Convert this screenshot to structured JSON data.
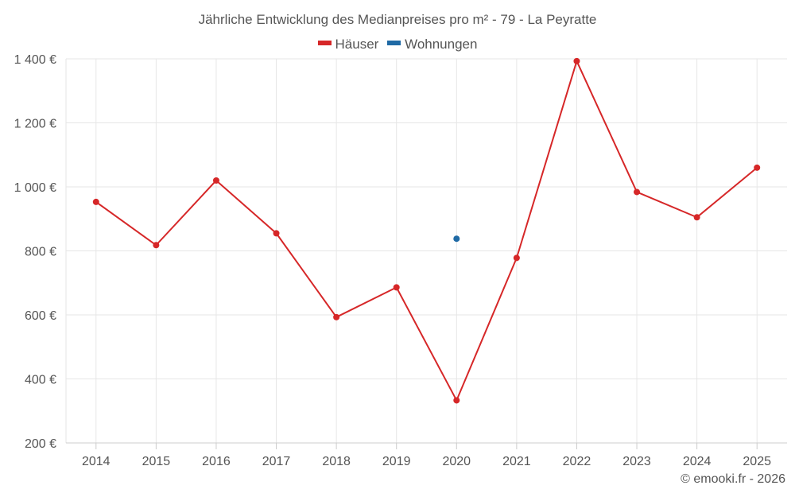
{
  "chart_data": {
    "type": "line",
    "title": "Jährliche Entwicklung des Medianpreises pro m² - 79 - La Peyratte",
    "xlabel": "",
    "ylabel": "",
    "categories": [
      "2014",
      "2015",
      "2016",
      "2017",
      "2018",
      "2019",
      "2020",
      "2021",
      "2022",
      "2023",
      "2024",
      "2025"
    ],
    "series": [
      {
        "name": "Häuser",
        "color": "#d62728",
        "values": [
          953,
          818,
          1020,
          855,
          593,
          686,
          333,
          778,
          1393,
          984,
          905,
          1060
        ]
      },
      {
        "name": "Wohnungen",
        "color": "#1f6aa5",
        "values": [
          null,
          null,
          null,
          null,
          null,
          null,
          838,
          null,
          null,
          null,
          null,
          null
        ]
      }
    ],
    "y_ticks": [
      200,
      400,
      600,
      800,
      1000,
      1200,
      1400
    ],
    "y_tick_labels": [
      "200 €",
      "400 €",
      "600 €",
      "800 €",
      "1 000 €",
      "1 200 €",
      "1 400 €"
    ],
    "ylim": [
      200,
      1400
    ],
    "grid": true,
    "legend_position": "top-center"
  },
  "credit": "© emooki.fr - 2026"
}
